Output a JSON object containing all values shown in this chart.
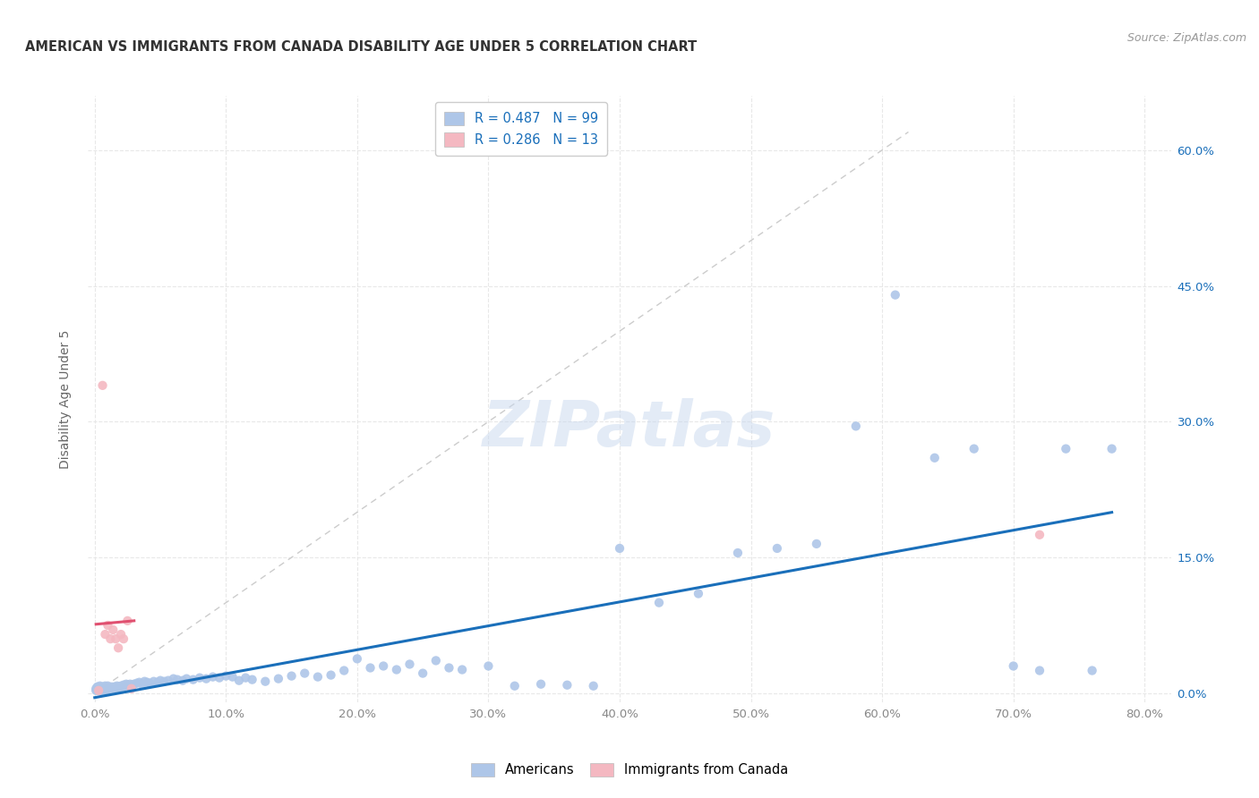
{
  "title": "AMERICAN VS IMMIGRANTS FROM CANADA DISABILITY AGE UNDER 5 CORRELATION CHART",
  "source": "Source: ZipAtlas.com",
  "ylabel": "Disability Age Under 5",
  "watermark": "ZIPatlas",
  "xlim": [
    -0.005,
    0.82
  ],
  "ylim": [
    -0.01,
    0.66
  ],
  "xticks": [
    0.0,
    0.1,
    0.2,
    0.3,
    0.4,
    0.5,
    0.6,
    0.7,
    0.8
  ],
  "yticks": [
    0.0,
    0.15,
    0.3,
    0.45,
    0.6
  ],
  "ytick_labels": [
    "0.0%",
    "15.0%",
    "30.0%",
    "45.0%",
    "60.0%"
  ],
  "xtick_labels": [
    "0.0%",
    "10.0%",
    "20.0%",
    "30.0%",
    "40.0%",
    "50.0%",
    "60.0%",
    "70.0%",
    "80.0%"
  ],
  "r_american": 0.487,
  "n_american": 99,
  "r_canada": 0.286,
  "n_canada": 13,
  "american_color": "#aec6e8",
  "canada_color": "#f4b8c1",
  "trend_american_color": "#1a6fba",
  "trend_canada_color": "#e05070",
  "diagonal_color": "#cccccc",
  "legend_text_color": "#1a6fba",
  "grid_color": "#e8e8e8",
  "background_color": "#ffffff",
  "americans_x": [
    0.001,
    0.001,
    0.002,
    0.002,
    0.003,
    0.003,
    0.004,
    0.004,
    0.005,
    0.005,
    0.006,
    0.006,
    0.007,
    0.007,
    0.008,
    0.008,
    0.009,
    0.01,
    0.01,
    0.011,
    0.012,
    0.013,
    0.014,
    0.015,
    0.016,
    0.017,
    0.018,
    0.019,
    0.02,
    0.021,
    0.022,
    0.023,
    0.024,
    0.025,
    0.026,
    0.027,
    0.028,
    0.03,
    0.032,
    0.034,
    0.036,
    0.038,
    0.04,
    0.042,
    0.045,
    0.048,
    0.05,
    0.053,
    0.056,
    0.06,
    0.063,
    0.067,
    0.07,
    0.075,
    0.08,
    0.085,
    0.09,
    0.095,
    0.1,
    0.105,
    0.11,
    0.115,
    0.12,
    0.13,
    0.14,
    0.15,
    0.16,
    0.17,
    0.18,
    0.19,
    0.2,
    0.21,
    0.22,
    0.23,
    0.24,
    0.25,
    0.26,
    0.27,
    0.28,
    0.3,
    0.32,
    0.34,
    0.36,
    0.38,
    0.4,
    0.43,
    0.46,
    0.49,
    0.52,
    0.55,
    0.58,
    0.61,
    0.64,
    0.67,
    0.7,
    0.72,
    0.74,
    0.76,
    0.775
  ],
  "americans_y": [
    0.003,
    0.005,
    0.004,
    0.007,
    0.003,
    0.006,
    0.004,
    0.008,
    0.003,
    0.006,
    0.004,
    0.007,
    0.003,
    0.006,
    0.004,
    0.008,
    0.003,
    0.005,
    0.008,
    0.006,
    0.005,
    0.007,
    0.005,
    0.007,
    0.006,
    0.008,
    0.006,
    0.007,
    0.008,
    0.007,
    0.009,
    0.008,
    0.01,
    0.009,
    0.008,
    0.01,
    0.009,
    0.01,
    0.011,
    0.012,
    0.01,
    0.013,
    0.012,
    0.011,
    0.013,
    0.012,
    0.014,
    0.013,
    0.014,
    0.016,
    0.015,
    0.014,
    0.016,
    0.015,
    0.017,
    0.016,
    0.018,
    0.017,
    0.019,
    0.018,
    0.014,
    0.017,
    0.015,
    0.013,
    0.016,
    0.019,
    0.022,
    0.018,
    0.02,
    0.025,
    0.038,
    0.028,
    0.03,
    0.026,
    0.032,
    0.022,
    0.036,
    0.028,
    0.026,
    0.03,
    0.008,
    0.01,
    0.009,
    0.008,
    0.16,
    0.1,
    0.11,
    0.155,
    0.16,
    0.165,
    0.295,
    0.44,
    0.26,
    0.27,
    0.03,
    0.025,
    0.27,
    0.025,
    0.27
  ],
  "canada_x": [
    0.003,
    0.006,
    0.008,
    0.01,
    0.012,
    0.014,
    0.016,
    0.018,
    0.02,
    0.022,
    0.025,
    0.028,
    0.72
  ],
  "canada_y": [
    0.003,
    0.34,
    0.065,
    0.075,
    0.06,
    0.07,
    0.06,
    0.05,
    0.065,
    0.06,
    0.08,
    0.005,
    0.175
  ],
  "canada_trend_x": [
    0.003,
    0.03
  ],
  "american_trend_x": [
    0.0,
    0.775
  ]
}
